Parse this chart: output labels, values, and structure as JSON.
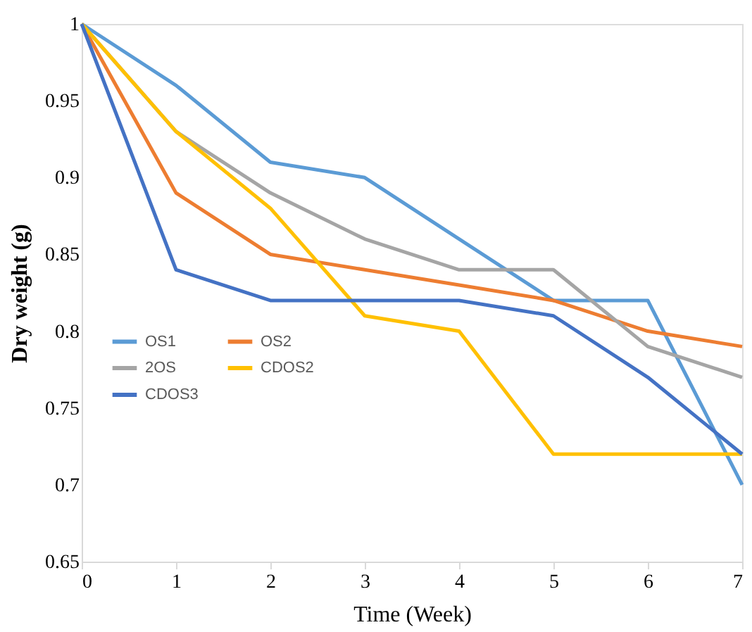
{
  "chart_data": {
    "type": "line",
    "xlabel": "Time (Week)",
    "ylabel": "Dry weight (g)",
    "x": [
      0,
      1,
      2,
      3,
      4,
      5,
      6,
      7
    ],
    "series": [
      {
        "name": "OS1",
        "color": "#5b9bd5",
        "values": [
          1,
          0.96,
          0.91,
          0.9,
          0.86,
          0.82,
          0.82,
          0.7
        ]
      },
      {
        "name": "OS2",
        "color": "#ed7d31",
        "values": [
          1,
          0.89,
          0.85,
          0.84,
          0.83,
          0.82,
          0.8,
          0.79
        ]
      },
      {
        "name": "2OS",
        "color": "#a5a5a5",
        "values": [
          1,
          0.93,
          0.89,
          0.86,
          0.84,
          0.84,
          0.79,
          0.77
        ]
      },
      {
        "name": "CDOS2",
        "color": "#ffc000",
        "values": [
          1,
          0.93,
          0.88,
          0.81,
          0.8,
          0.72,
          0.72,
          0.72
        ]
      },
      {
        "name": "CDOS3",
        "color": "#4472c4",
        "values": [
          1,
          0.84,
          0.82,
          0.82,
          0.82,
          0.81,
          0.77,
          0.72
        ]
      }
    ],
    "xlim": [
      0,
      7
    ],
    "xticks": [
      0,
      1,
      2,
      3,
      4,
      5,
      6,
      7
    ],
    "ylim": [
      0.65,
      1
    ],
    "yticks": [
      0.65,
      0.7,
      0.75,
      0.8,
      0.85,
      0.9,
      0.95,
      1
    ],
    "grid": false,
    "legend": "left",
    "marker": "none",
    "line_style": "solid"
  }
}
